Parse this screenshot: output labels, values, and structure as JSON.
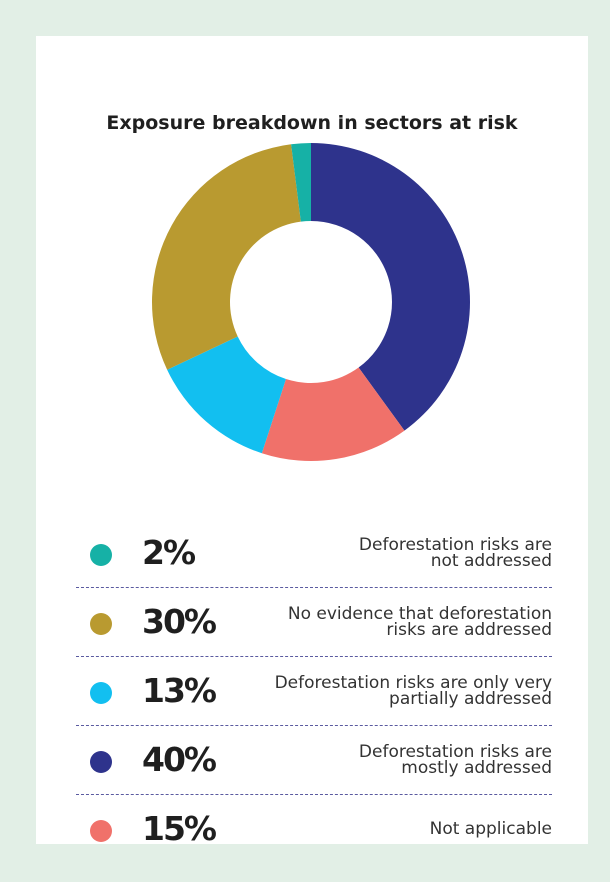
{
  "chart_data": {
    "type": "pie",
    "title": "Exposure breakdown in sectors at risk",
    "categories": [
      "Deforestation risks are not addressed",
      "No evidence that deforestation risks are addressed",
      "Deforestation risks are only very partially addressed",
      "Deforestation risks are mostly addressed",
      "Not applicable"
    ],
    "values": [
      2,
      30,
      13,
      40,
      15
    ],
    "labels": [
      "2%",
      "30%",
      "13%",
      "40%",
      "15%"
    ],
    "colors": [
      "#16b1a6",
      "#b99a30",
      "#12bff0",
      "#2e338c",
      "#f0716a"
    ],
    "donut": true,
    "legend_position": "bottom"
  },
  "legend_lines": [
    [
      "Deforestation risks are",
      "not addressed"
    ],
    [
      "No evidence that deforestation",
      "risks are addressed"
    ],
    [
      "Deforestation risks are only very",
      "partially addressed"
    ],
    [
      "Deforestation risks are",
      "mostly addressed"
    ],
    [
      "Not applicable"
    ]
  ]
}
